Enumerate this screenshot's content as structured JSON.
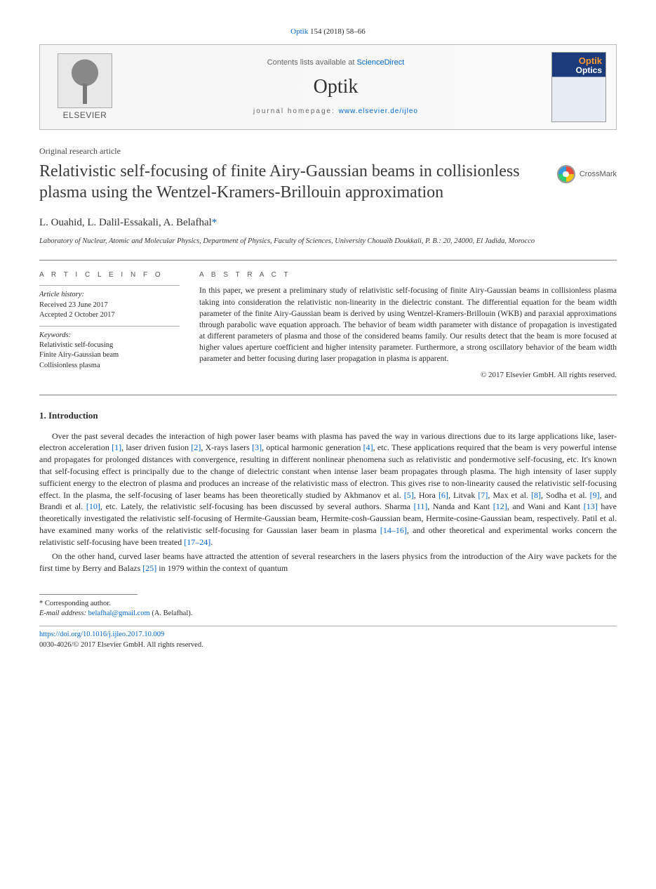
{
  "citation": {
    "journal_abbrev": "Optik",
    "volume_issue": "154 (2018) 58–66"
  },
  "header": {
    "contents_prefix": "Contents lists available at ",
    "contents_link": "ScienceDirect",
    "journal": "Optik",
    "homepage_prefix": "journal homepage: ",
    "homepage_url": "www.elsevier.de/ijleo",
    "publisher_word": "ELSEVIER"
  },
  "article": {
    "type": "Original research article",
    "title": "Relativistic self-focusing of finite Airy-Gaussian beams in collisionless plasma using the Wentzel-Kramers-Brillouin approximation",
    "crossmark_label": "CrossMark",
    "authors_line": "L. Ouahid, L. Dalil-Essakali, A. Belafhal",
    "corr_marker": "*",
    "affiliation": "Laboratory of Nuclear, Atomic and Molecular Physics, Department of Physics, Faculty of Sciences, University Chouaïb Doukkali, P. B.: 20, 24000, El Jadida, Morocco"
  },
  "info": {
    "heading": "A R T I C L E  I N F O",
    "history_label": "Article history:",
    "received": "Received 23 June 2017",
    "accepted": "Accepted 2 October 2017",
    "keywords_label": "Keywords:",
    "keywords": [
      "Relativistic self-focusing",
      "Finite Airy-Gaussian beam",
      "Collisionless plasma"
    ]
  },
  "abstract": {
    "heading": "A B S T R A C T",
    "text": "In this paper, we present a preliminary study of relativistic self-focusing of finite Airy-Gaussian beams in collisionless plasma taking into consideration the relativistic non-linearity in the dielectric constant. The differential equation for the beam width parameter of the finite Airy-Gaussian beam is derived by using Wentzel-Kramers-Brillouin (WKB) and paraxial approximations through parabolic wave equation approach. The behavior of beam width parameter with distance of propagation is investigated at different parameters of plasma and those of the considered beams family. Our results detect that the beam is more focused at higher values aperture coefficient and higher intensity parameter. Furthermore, a strong oscillatory behavior of the beam width parameter and better focusing during laser propagation in plasma is apparent.",
    "copyright": "© 2017 Elsevier GmbH. All rights reserved."
  },
  "section1": {
    "heading": "1.  Introduction",
    "p1_a": "Over the past several decades the interaction of high power laser beams with plasma has paved the way in various directions due to its large applications like, laser-electron acceleration ",
    "r1": "[1]",
    "p1_b": ", laser driven fusion ",
    "r2": "[2]",
    "p1_c": ", X-rays lasers ",
    "r3": "[3]",
    "p1_d": ", optical harmonic generation ",
    "r4": "[4]",
    "p1_e": ", etc. These applications required that the beam is very powerful intense and propagates for prolonged distances with convergence, resulting in different nonlinear phenomena such as relativistic and pondermotive self-focusing, etc. It's known that self-focusing effect is principally due to the change of dielectric constant when intense laser beam propagates through plasma. The high intensity of laser supply sufficient energy to the electron of plasma and produces an increase of the relativistic mass of electron. This gives rise to non-linearity caused the relativistic self-focusing effect. In the plasma, the self-focusing of laser beams has been theoretically studied by Akhmanov et al. ",
    "r5": "[5]",
    "p1_f": ", Hora ",
    "r6": "[6]",
    "p1_g": ", Litvak ",
    "r7": "[7]",
    "p1_h": ", Max et al. ",
    "r8": "[8]",
    "p1_i": ", Sodha et al. ",
    "r9": "[9]",
    "p1_j": ", and Brandi et al. ",
    "r10": "[10]",
    "p1_k": ", etc. Lately, the relativistic self-focusing has been discussed by several authors. Sharma ",
    "r11": "[11]",
    "p1_l": ", Nanda and Kant ",
    "r12": "[12]",
    "p1_m": ", and Wani and Kant ",
    "r13": "[13]",
    "p1_n": " have theoretically investigated the relativistic self-focusing of Hermite-Gaussian beam, Hermite-cosh-Gaussian beam, Hermite-cosine-Gaussian beam, respectively. Patil et al. have examined many works of the relativistic self-focusing for Gaussian laser beam in plasma ",
    "r14": "[14–16]",
    "p1_o": ", and other theoretical and experimental works concern the relativistic self-focusing have been treated ",
    "r17": "[17–24]",
    "p1_p": ".",
    "p2_a": "On the other hand, curved laser beams have attracted the attention of several researchers in the lasers physics from the introduction of the Airy wave packets for the first time by Berry and Balazs ",
    "r25": "[25]",
    "p2_b": " in 1979 within the context of quantum"
  },
  "footer": {
    "corr_label": "* Corresponding author.",
    "email_label": "E-mail address: ",
    "email": "belafhal@gmail.com",
    "email_suffix": " (A. Belafhal).",
    "doi": "https://doi.org/10.1016/j.ijleo.2017.10.009",
    "issn_line": "0030-4026/© 2017 Elsevier GmbH. All rights reserved."
  },
  "colors": {
    "link": "#0066cc",
    "text": "#2a2a2a",
    "rule": "#888888"
  }
}
